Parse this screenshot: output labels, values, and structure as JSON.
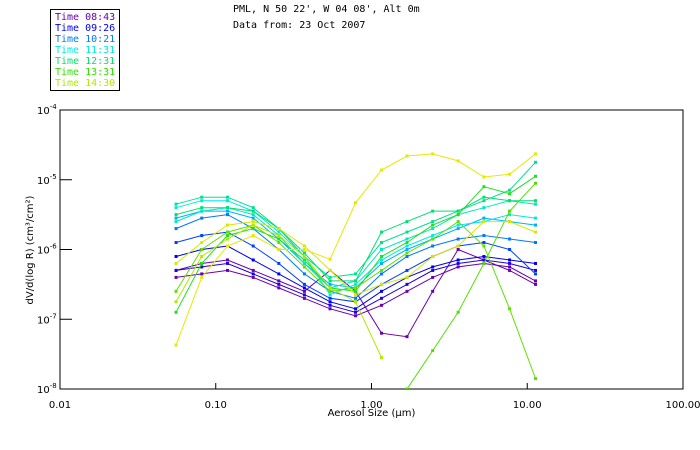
{
  "header": {
    "line1": "PML, N 50 22', W 04 08', Alt 0m",
    "line2": "Data from: 23 Oct 2007"
  },
  "legend": [
    {
      "label": "Time 08:43",
      "color": "#6a00b0"
    },
    {
      "label": "Time 09:26",
      "color": "#0000ee"
    },
    {
      "label": "Time 10:21",
      "color": "#0078ff"
    },
    {
      "label": "Time 11:31",
      "color": "#00e8e8"
    },
    {
      "label": "Time 12:31",
      "color": "#00e070"
    },
    {
      "label": "Time 13:31",
      "color": "#30e000"
    },
    {
      "label": "Time 14:30",
      "color": "#b0e800"
    }
  ],
  "chart_data": {
    "type": "line",
    "xscale": "log",
    "yscale": "log",
    "xlabel": "Aerosol Size (µm)",
    "ylabel": "dV/d(log R)  (cm³/cm²)",
    "xlim": [
      0.01,
      100
    ],
    "ylim_log10": [
      -8,
      -4
    ],
    "xticks": [
      {
        "v": 0.01,
        "label": "0.01"
      },
      {
        "v": 0.1,
        "label": "0.10"
      },
      {
        "v": 1,
        "label": "1.00"
      },
      {
        "v": 10,
        "label": "10.00"
      },
      {
        "v": 100,
        "label": "100.00"
      }
    ],
    "yticks": [
      {
        "e": -4,
        "label": "10",
        "sup": "-4"
      },
      {
        "e": -5,
        "label": "10",
        "sup": "-5"
      },
      {
        "e": -6,
        "label": "10",
        "sup": "-6"
      },
      {
        "e": -7,
        "label": "10",
        "sup": "-7"
      },
      {
        "e": -8,
        "label": "10",
        "sup": "-8"
      }
    ],
    "x": [
      0.0556,
      0.0813,
      0.119,
      0.174,
      0.254,
      0.371,
      0.542,
      0.79,
      1.16,
      1.69,
      2.47,
      3.6,
      5.27,
      7.7,
      11.3
    ],
    "series": [
      {
        "color": "#6a00b0",
        "values_log10": [
          -6.4,
          -6.35,
          -6.3,
          -6.4,
          -6.55,
          -6.7,
          -6.85,
          -6.95,
          -6.8,
          -6.6,
          -6.4,
          -6.25,
          -6.2,
          -6.25,
          -6.45
        ]
      },
      {
        "color": "#6a00b0",
        "values_log10": [
          -6.3,
          -6.2,
          -6.15,
          -6.3,
          -6.45,
          -6.6,
          -6.3,
          -6.6,
          -7.2,
          -7.25,
          -6.6,
          -6.0,
          -6.15,
          -6.3,
          -6.5
        ]
      },
      {
        "color": "#2000e0",
        "values_log10": [
          -6.3,
          -6.25,
          -6.2,
          -6.35,
          -6.5,
          -6.65,
          -6.8,
          -6.9,
          -6.7,
          -6.5,
          -6.3,
          -6.2,
          -6.15,
          -6.2,
          -6.3
        ]
      },
      {
        "color": "#0000ee",
        "values_log10": [
          -6.1,
          -6.0,
          -5.95,
          -6.15,
          -6.35,
          -6.55,
          -6.75,
          -6.85,
          -6.6,
          -6.4,
          -6.25,
          -6.15,
          -6.1,
          -6.15,
          -6.2
        ]
      },
      {
        "color": "#0040ff",
        "values_log10": [
          -5.9,
          -5.8,
          -5.75,
          -5.95,
          -6.2,
          -6.5,
          -6.7,
          -6.75,
          -6.5,
          -6.3,
          -6.1,
          -5.95,
          -5.9,
          -6.0,
          -6.35
        ]
      },
      {
        "color": "#0078ff",
        "values_log10": [
          -5.7,
          -5.55,
          -5.5,
          -5.7,
          -6.0,
          -6.35,
          -6.6,
          -6.7,
          -6.35,
          -6.1,
          -5.95,
          -5.85,
          -5.8,
          -5.85,
          -5.9
        ]
      },
      {
        "color": "#00b0ff",
        "values_log10": [
          -5.55,
          -5.45,
          -5.45,
          -5.55,
          -5.85,
          -6.2,
          -6.5,
          -6.55,
          -6.2,
          -6.0,
          -5.85,
          -5.7,
          -5.55,
          -5.6,
          -5.65
        ]
      },
      {
        "color": "#00e8e8",
        "values_log10": [
          -5.4,
          -5.3,
          -5.3,
          -5.45,
          -5.75,
          -6.1,
          -6.65,
          -6.5,
          -6.15,
          -5.95,
          -5.8,
          -5.65,
          -5.6,
          -5.5,
          -5.55
        ]
      },
      {
        "color": "#00e8c0",
        "values_log10": [
          -5.6,
          -5.45,
          -5.4,
          -5.5,
          -5.8,
          -6.2,
          -6.55,
          -6.45,
          -6.0,
          -5.85,
          -5.7,
          -5.5,
          -5.4,
          -5.3,
          -5.35
        ]
      },
      {
        "color": "#00e090",
        "values_log10": [
          -5.35,
          -5.25,
          -5.25,
          -5.4,
          -5.7,
          -6.1,
          -6.4,
          -6.35,
          -5.9,
          -5.75,
          -5.6,
          -5.45,
          -5.3,
          -5.15,
          -4.75
        ]
      },
      {
        "color": "#00e070",
        "values_log10": [
          -5.5,
          -5.4,
          -5.4,
          -5.45,
          -5.7,
          -6.05,
          -6.45,
          -6.45,
          -5.75,
          -5.6,
          -5.45,
          -5.45,
          -5.25,
          -5.3,
          -5.3
        ]
      },
      {
        "color": "#20e020",
        "values_log10": [
          -6.9,
          -6.2,
          -5.8,
          -5.7,
          -5.85,
          -6.15,
          -6.55,
          -6.6,
          -6.1,
          -5.9,
          -5.65,
          -5.5,
          -5.1,
          -5.2,
          -4.95
        ]
      },
      {
        "color": "#60e000",
        "values_log10": [
          -6.6,
          -6.0,
          -5.75,
          -5.65,
          -5.9,
          -6.25,
          -6.6,
          -6.55,
          -6.3,
          -6.05,
          -5.85,
          -5.6,
          -5.95,
          -6.85,
          -7.85
        ]
      },
      {
        "color": "#50e000",
        "values_log10": [
          null,
          null,
          null,
          null,
          null,
          null,
          null,
          null,
          null,
          -8.0,
          -7.45,
          -6.9,
          -6.2,
          -5.45,
          -5.05
        ]
      },
      {
        "color": "#b0e800",
        "values_log10": [
          -6.75,
          -6.1,
          -5.85,
          -5.65,
          -5.8,
          -6.1,
          -6.55,
          -6.75,
          -7.55,
          null,
          null,
          null,
          null,
          null,
          null
        ]
      },
      {
        "color": "#e8e800",
        "values_log10": [
          -7.37,
          -6.4,
          -5.95,
          -5.8,
          -6.0,
          -6.0,
          -6.14,
          -5.33,
          -4.86,
          -4.66,
          -4.63,
          -4.73,
          -4.96,
          -4.92,
          -4.63
        ]
      },
      {
        "color": "#d8e800",
        "values_log10": [
          -6.2,
          -5.9,
          -5.65,
          -5.6,
          -5.7,
          -5.95,
          -6.3,
          -6.65,
          -6.5,
          -6.4,
          -6.1,
          -5.95,
          -5.6,
          -5.6,
          -5.75
        ]
      }
    ]
  }
}
